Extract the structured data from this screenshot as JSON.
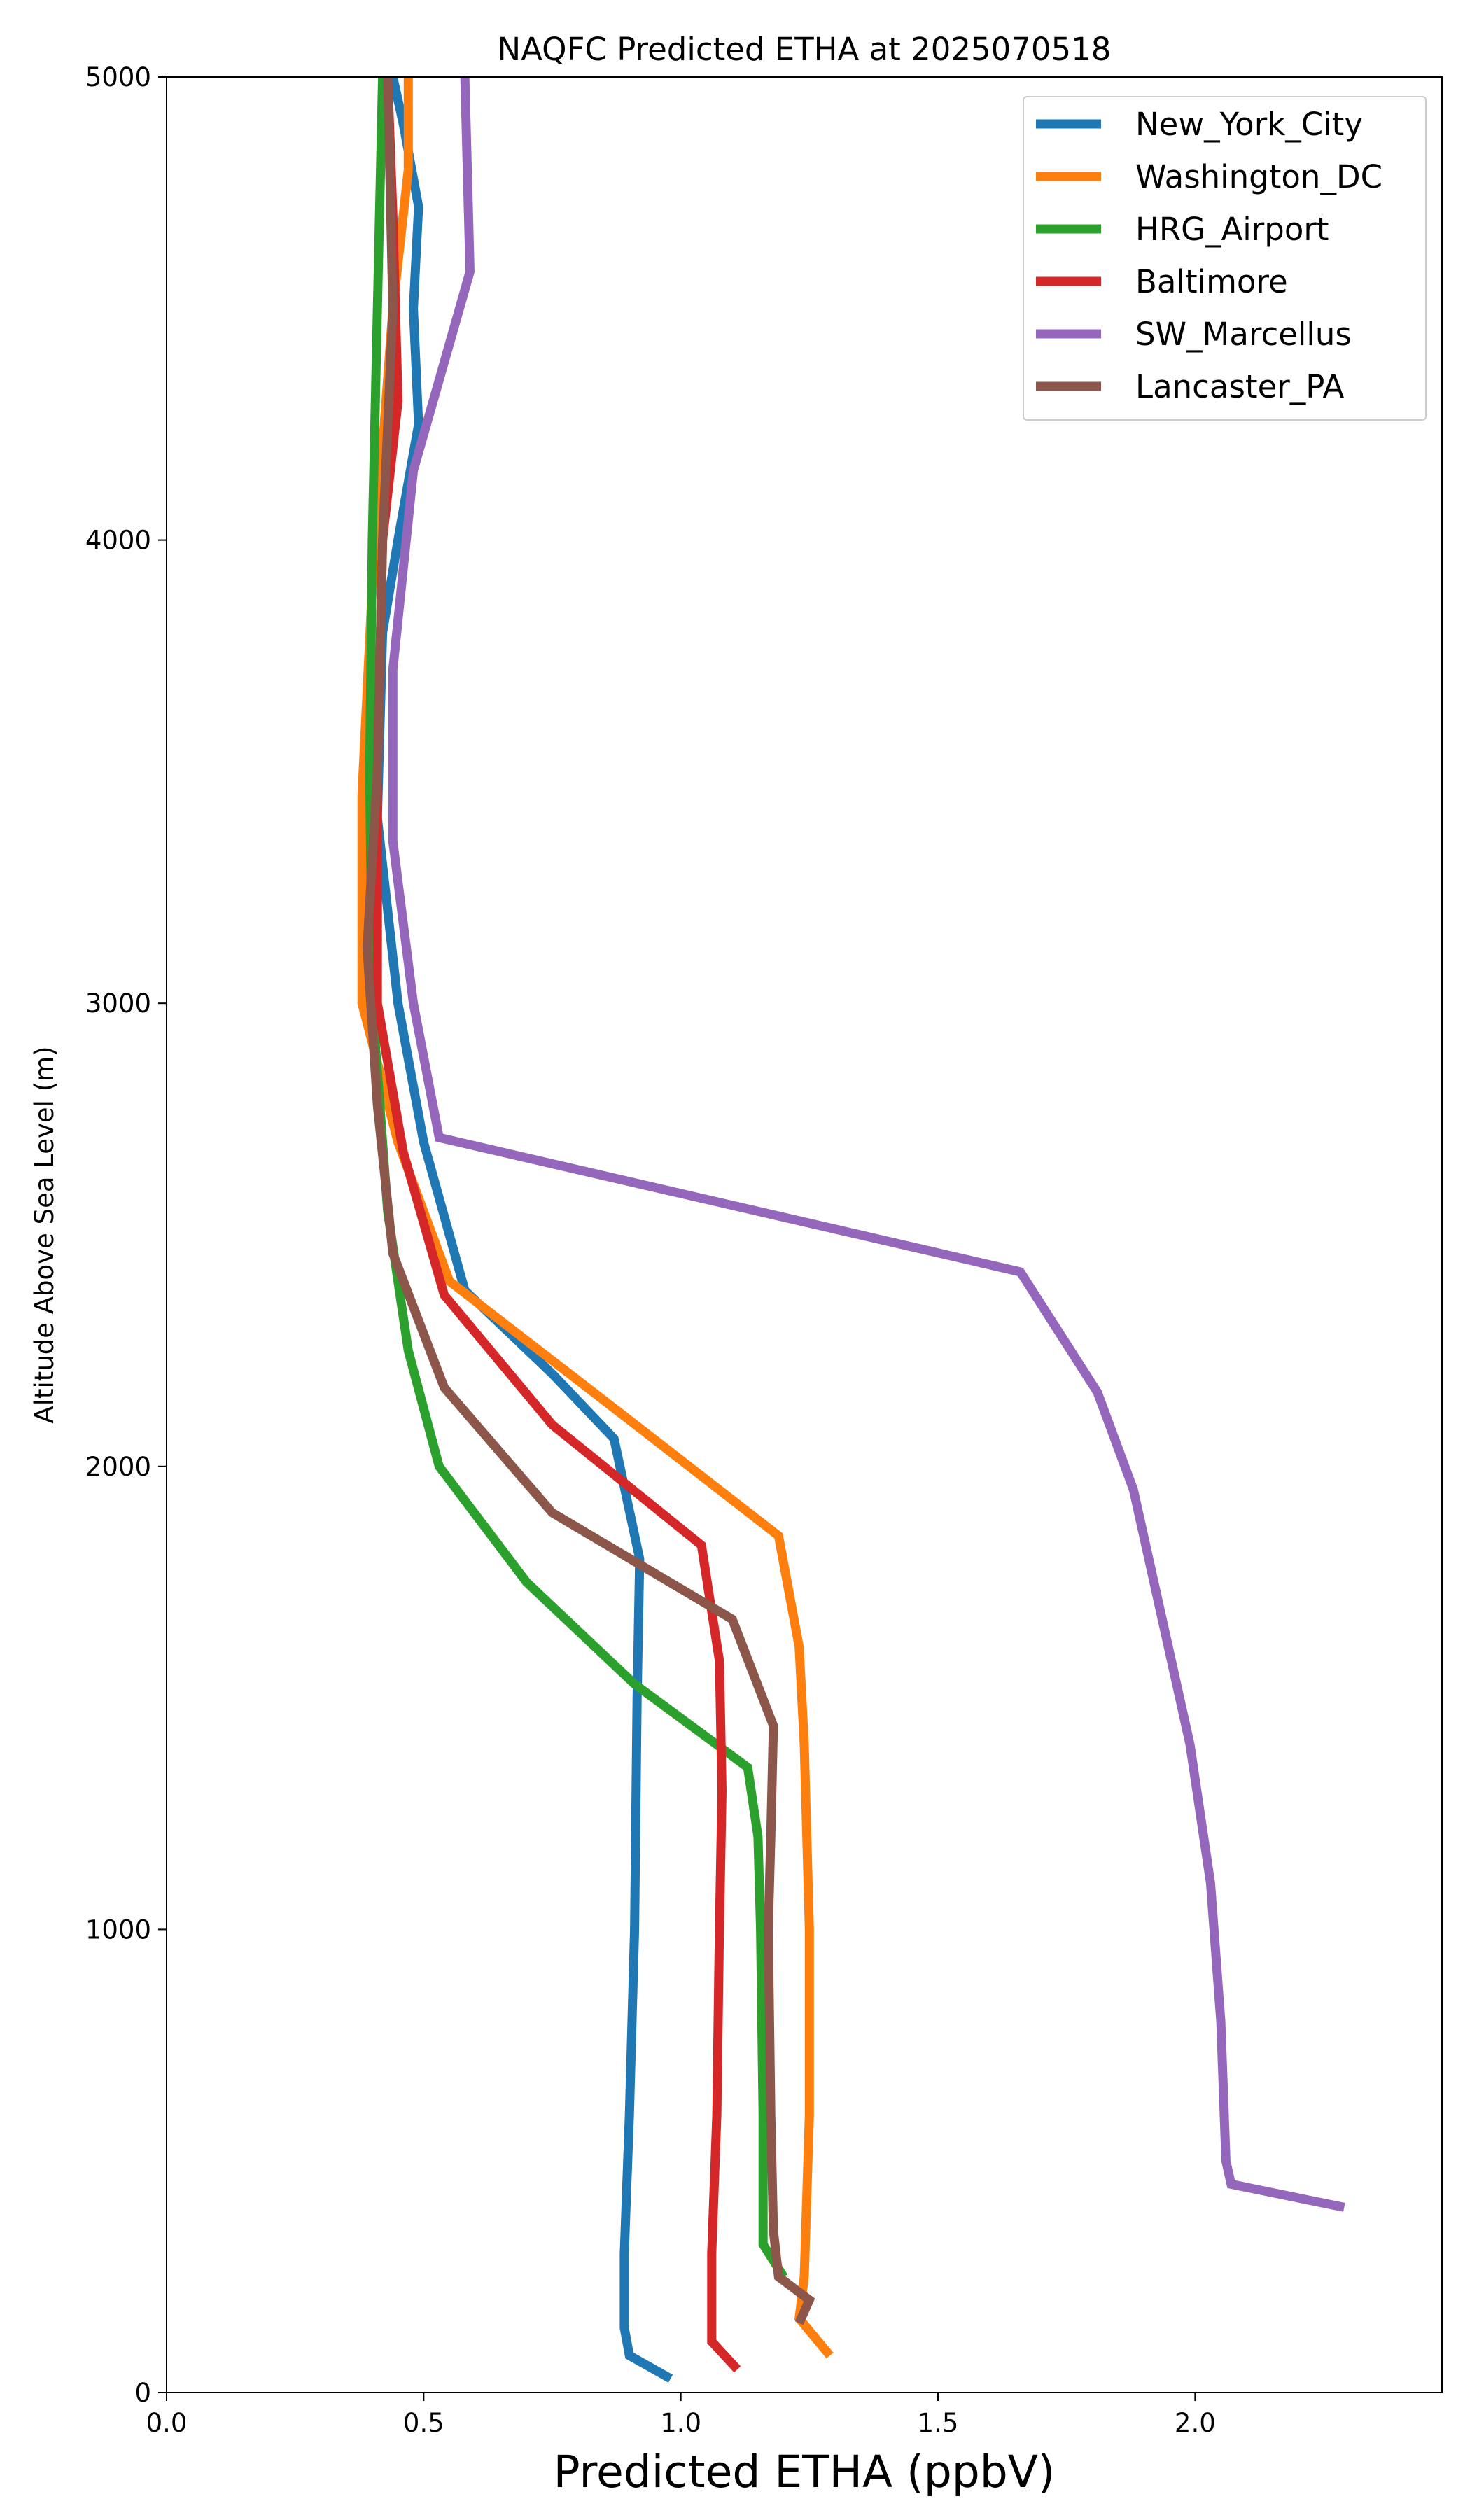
{
  "chart_data": {
    "type": "line",
    "title": "NAQFC Predicted ETHA at 2025070518",
    "xlabel": "Predicted ETHA (ppbV)",
    "ylabel": "Altitude Above Sea Level (m)",
    "xlim": [
      0,
      2.48
    ],
    "ylim": [
      0,
      5000
    ],
    "xticks": [
      "0.0",
      "0.5",
      "1.0",
      "1.5",
      "2.0"
    ],
    "xtick_values": [
      0,
      0.5,
      1.0,
      1.5,
      2.0
    ],
    "yticks": [
      "0",
      "1000",
      "2000",
      "3000",
      "4000",
      "5000"
    ],
    "ytick_values": [
      0,
      1000,
      2000,
      3000,
      4000,
      5000
    ],
    "grid": false,
    "legend_position": "upper right",
    "series": [
      {
        "name": "New_York_City",
        "color": "#1f77b4",
        "points": [
          [
            0.98,
            30
          ],
          [
            0.9,
            80
          ],
          [
            0.89,
            140
          ],
          [
            0.89,
            300
          ],
          [
            0.9,
            600
          ],
          [
            0.91,
            1000
          ],
          [
            0.915,
            1500
          ],
          [
            0.92,
            1800
          ],
          [
            0.87,
            2060
          ],
          [
            0.75,
            2200
          ],
          [
            0.58,
            2380
          ],
          [
            0.5,
            2700
          ],
          [
            0.45,
            3000
          ],
          [
            0.41,
            3400
          ],
          [
            0.42,
            3800
          ],
          [
            0.45,
            4000
          ],
          [
            0.49,
            4250
          ],
          [
            0.48,
            4500
          ],
          [
            0.49,
            4720
          ],
          [
            0.46,
            4900
          ],
          [
            0.44,
            5000
          ]
        ]
      },
      {
        "name": "Washington_DC",
        "color": "#ff7f0e",
        "points": [
          [
            1.29,
            80
          ],
          [
            1.23,
            160
          ],
          [
            1.24,
            250
          ],
          [
            1.25,
            600
          ],
          [
            1.25,
            1000
          ],
          [
            1.24,
            1400
          ],
          [
            1.23,
            1610
          ],
          [
            1.19,
            1850
          ],
          [
            0.9,
            2100
          ],
          [
            0.55,
            2400
          ],
          [
            0.45,
            2700
          ],
          [
            0.38,
            3000
          ],
          [
            0.38,
            3450
          ],
          [
            0.4,
            3900
          ],
          [
            0.42,
            4200
          ],
          [
            0.44,
            4500
          ],
          [
            0.47,
            4800
          ],
          [
            0.47,
            5000
          ]
        ]
      },
      {
        "name": "HRG_Airport",
        "color": "#2ca02c",
        "points": [
          [
            1.2,
            250
          ],
          [
            1.16,
            320
          ],
          [
            1.16,
            600
          ],
          [
            1.155,
            1000
          ],
          [
            1.15,
            1200
          ],
          [
            1.13,
            1350
          ],
          [
            0.91,
            1530
          ],
          [
            0.7,
            1750
          ],
          [
            0.53,
            2000
          ],
          [
            0.47,
            2250
          ],
          [
            0.43,
            2550
          ],
          [
            0.4,
            3000
          ],
          [
            0.395,
            3500
          ],
          [
            0.4,
            4000
          ],
          [
            0.41,
            4500
          ],
          [
            0.42,
            5000
          ]
        ]
      },
      {
        "name": "Baltimore",
        "color": "#d62728",
        "points": [
          [
            1.11,
            50
          ],
          [
            1.06,
            110
          ],
          [
            1.06,
            300
          ],
          [
            1.07,
            600
          ],
          [
            1.075,
            1000
          ],
          [
            1.08,
            1300
          ],
          [
            1.075,
            1580
          ],
          [
            1.04,
            1830
          ],
          [
            0.75,
            2090
          ],
          [
            0.54,
            2370
          ],
          [
            0.46,
            2680
          ],
          [
            0.41,
            3000
          ],
          [
            0.41,
            3500
          ],
          [
            0.42,
            4000
          ],
          [
            0.45,
            4300
          ],
          [
            0.44,
            4700
          ],
          [
            0.43,
            5000
          ]
        ]
      },
      {
        "name": "SW_Marcellus",
        "color": "#9467bd",
        "points": [
          [
            2.29,
            400
          ],
          [
            2.07,
            450
          ],
          [
            2.06,
            500
          ],
          [
            2.05,
            800
          ],
          [
            2.03,
            1100
          ],
          [
            1.99,
            1400
          ],
          [
            1.93,
            1700
          ],
          [
            1.88,
            1950
          ],
          [
            1.81,
            2160
          ],
          [
            1.66,
            2420
          ],
          [
            0.53,
            2710
          ],
          [
            0.48,
            3000
          ],
          [
            0.44,
            3350
          ],
          [
            0.44,
            3720
          ],
          [
            0.48,
            4150
          ],
          [
            0.59,
            4580
          ],
          [
            0.58,
            5000
          ]
        ]
      },
      {
        "name": "Lancaster_PA",
        "color": "#8c564b",
        "points": [
          [
            1.23,
            150
          ],
          [
            1.25,
            200
          ],
          [
            1.19,
            250
          ],
          [
            1.18,
            350
          ],
          [
            1.175,
            600
          ],
          [
            1.17,
            1000
          ],
          [
            1.175,
            1200
          ],
          [
            1.18,
            1440
          ],
          [
            1.1,
            1670
          ],
          [
            0.75,
            1900
          ],
          [
            0.54,
            2170
          ],
          [
            0.44,
            2460
          ],
          [
            0.41,
            2780
          ],
          [
            0.39,
            3120
          ],
          [
            0.41,
            3500
          ],
          [
            0.42,
            4000
          ],
          [
            0.44,
            4500
          ],
          [
            0.43,
            5000
          ]
        ]
      }
    ]
  }
}
